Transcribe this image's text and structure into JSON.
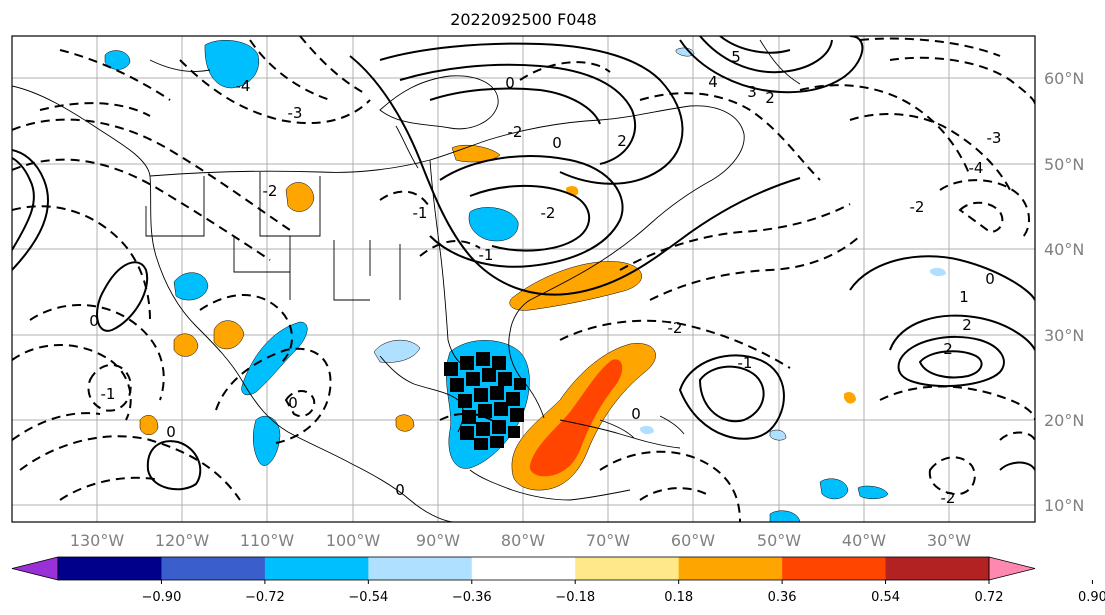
{
  "title": "2022092500 F048",
  "lon_labels": [
    "130°W",
    "120°W",
    "110°W",
    "100°W",
    "90°W",
    "80°W",
    "70°W",
    "60°W",
    "50°W",
    "40°W",
    "30°W"
  ],
  "lat_labels": [
    "60°N",
    "50°N",
    "40°N",
    "30°N",
    "20°N",
    "10°N"
  ],
  "colorbar": {
    "ticks": [
      "−0.90",
      "−0.72",
      "−0.54",
      "−0.36",
      "−0.18",
      "0.18",
      "0.36",
      "0.54",
      "0.72",
      "0.90"
    ],
    "colors": [
      "#9a30d8",
      "#00008b",
      "#3a5fcd",
      "#00bfff",
      "#b0e0ff",
      "#ffffff",
      "#ffe88a",
      "#ffa500",
      "#ff4500",
      "#b22222",
      "#ff88b0"
    ]
  },
  "contour_labels": [
    {
      "text": "-4"
    },
    {
      "text": "-3"
    },
    {
      "text": "-2"
    },
    {
      "text": "-1"
    },
    {
      "text": "0"
    },
    {
      "text": "-2"
    },
    {
      "text": "0"
    },
    {
      "text": "2"
    },
    {
      "text": "-2"
    },
    {
      "text": "-1"
    },
    {
      "text": "5"
    },
    {
      "text": "4"
    },
    {
      "text": "3"
    },
    {
      "text": "2"
    },
    {
      "text": "-3"
    },
    {
      "text": "-4"
    },
    {
      "text": "-2"
    },
    {
      "text": "1"
    },
    {
      "text": "2"
    },
    {
      "text": "2"
    },
    {
      "text": "0"
    },
    {
      "text": "-2"
    },
    {
      "text": "-1"
    },
    {
      "text": "0"
    },
    {
      "text": "0"
    },
    {
      "text": "0"
    },
    {
      "text": "0"
    },
    {
      "text": "0"
    },
    {
      "text": "-1"
    },
    {
      "text": "-2"
    }
  ]
}
